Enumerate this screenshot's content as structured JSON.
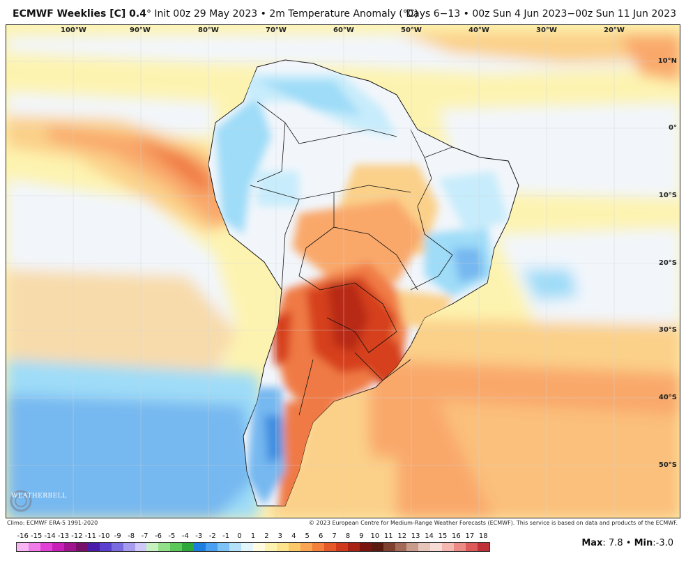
{
  "header": {
    "model_title": "ECMWF Weeklies [C] 0.4",
    "degree_suffix": "°",
    "init_text": "Init 00z 29 May 2023",
    "bullet": "•",
    "field_text": "2m Temperature Anomaly (°C)",
    "valid_text": "Days 6−13 • 00z Sun 4 Jun 2023−00z Sun 11 Jun 2023"
  },
  "map": {
    "longitude_labels": [
      "100°W",
      "90°W",
      "80°W",
      "70°W",
      "60°W",
      "50°W",
      "40°W",
      "30°W",
      "20°W"
    ],
    "latitude_labels": [
      "10°N",
      "0°",
      "10°S",
      "20°S",
      "30°S",
      "40°S",
      "50°S"
    ],
    "colors": {
      "ocean_yellow": "#fdf3b0",
      "light_orange": "#fbd089",
      "orange": "#f9a86a",
      "deep_orange": "#f07a45",
      "red": "#d6401d",
      "dark_red": "#b82c12",
      "pale_blue": "#c7ecfb",
      "light_blue": "#9edcf8",
      "blue": "#76b8f0",
      "neutral": "#f2f6fb",
      "border": "#111111"
    }
  },
  "footer": {
    "climo": "Climo: ECMWF ERA-5 1991-2020",
    "copyright": "© 2023 European Centre for Medium-Range Weather Forecasts (ECMWF). This service is based on data and products of the ECMWF."
  },
  "colorbar": {
    "ticks": [
      "-16",
      "-15",
      "-14",
      "-13",
      "-12",
      "-11",
      "-10",
      "-9",
      "-8",
      "-7",
      "-6",
      "-5",
      "-4",
      "-3",
      "-2",
      "-1",
      "0",
      "1",
      "2",
      "3",
      "4",
      "5",
      "6",
      "7",
      "8",
      "9",
      "10",
      "11",
      "12",
      "13",
      "14",
      "15",
      "16",
      "17",
      "18"
    ],
    "swatches": [
      "#f7b6f2",
      "#ef7ce8",
      "#e241d8",
      "#c81fb8",
      "#a0158f",
      "#78106b",
      "#4a1aa8",
      "#5b3fd0",
      "#7a6be0",
      "#a59cf0",
      "#cfc8f8",
      "#c7f2c0",
      "#93e08a",
      "#5cc85a",
      "#2ea83b",
      "#1c7fe0",
      "#4aa0f0",
      "#7cc2f6",
      "#b4e0fa",
      "#e2f4fc",
      "#fffbe0",
      "#fdf3b0",
      "#fde48c",
      "#fcc96a",
      "#f9a551",
      "#f3813c",
      "#e65a2a",
      "#cf3a1c",
      "#a82314",
      "#7a150d",
      "#5a1a10",
      "#7f4030",
      "#a36a5a",
      "#c99b8c",
      "#e6c5bb",
      "#f6dcd4",
      "#f4b8b0",
      "#ec8a85",
      "#de5a5a",
      "#c03038"
    ],
    "max_label": "Max",
    "max_value": "7.8",
    "min_label": "Min",
    "min_value": "-3.0",
    "separator": "•"
  },
  "logo": {
    "text": "WEATHERBELL"
  }
}
